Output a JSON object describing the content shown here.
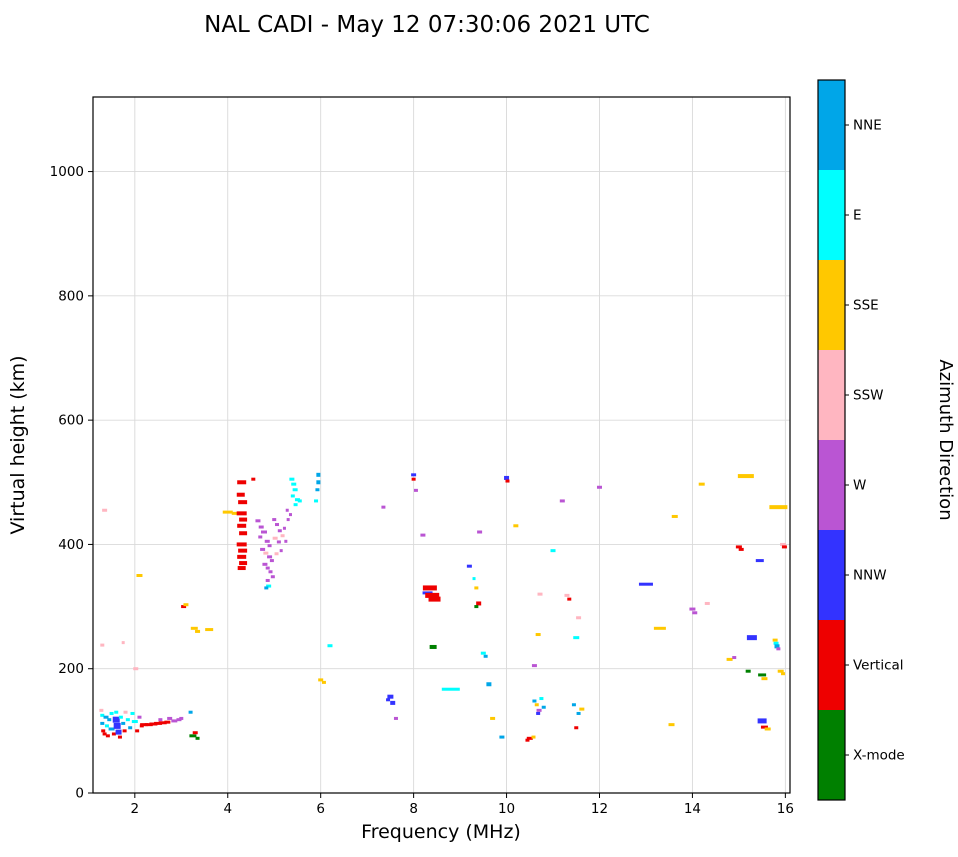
{
  "figure": {
    "title": "NAL CADI - May 12 07:30:06 2021 UTC"
  },
  "chart_data": {
    "type": "scatter",
    "title": "NAL CADI - May 12 07:30:06 2021 UTC",
    "xlabel": "Frequency (MHz)",
    "ylabel": "Virtual height (km)",
    "xlim": [
      1.1,
      16.1
    ],
    "ylim": [
      0,
      1120
    ],
    "xticks": [
      2,
      4,
      6,
      8,
      10,
      12,
      14,
      16
    ],
    "yticks": [
      0,
      200,
      400,
      600,
      800,
      1000
    ],
    "grid": true,
    "grid_color": "#d9d9d9",
    "colorbar": {
      "label": "Azimuth Direction",
      "categories_top_to_bottom": [
        "NNE",
        "E",
        "SSE",
        "SSW",
        "W",
        "NNW",
        "Vertical",
        "X-mode"
      ],
      "colors": {
        "NNE": "#00a6e8",
        "E": "#00ffff",
        "SSE": "#ffc800",
        "SSW": "#ffb6c1",
        "W": "#ba55d3",
        "NNW": "#3333ff",
        "Vertical": "#ee0000",
        "X-mode": "#008000"
      }
    },
    "point_format": "[freq_MHz, height_km, direction, dash_width_px(optional), dash_height_px(optional)]",
    "points": [
      [
        1.28,
        133,
        "SSW"
      ],
      [
        1.3,
        125,
        "E"
      ],
      [
        1.3,
        112,
        "NNE"
      ],
      [
        1.32,
        100,
        "Vertical"
      ],
      [
        1.35,
        95,
        "Vertical"
      ],
      [
        1.38,
        122,
        "NNE",
        5
      ],
      [
        1.4,
        108,
        "E"
      ],
      [
        1.42,
        92,
        "Vertical"
      ],
      [
        1.45,
        118,
        "NNE"
      ],
      [
        1.5,
        128,
        "E"
      ],
      [
        1.5,
        103,
        "NNE",
        6
      ],
      [
        1.55,
        95,
        "Vertical"
      ],
      [
        1.6,
        130,
        "E"
      ],
      [
        1.6,
        118,
        "NNW",
        7,
        6
      ],
      [
        1.62,
        108,
        "NNW",
        7,
        6
      ],
      [
        1.65,
        98,
        "NNW",
        6,
        5
      ],
      [
        1.68,
        90,
        "Vertical"
      ],
      [
        1.7,
        122,
        "E"
      ],
      [
        1.75,
        112,
        "NNE"
      ],
      [
        1.78,
        100,
        "Vertical"
      ],
      [
        1.8,
        130,
        "SSW"
      ],
      [
        1.85,
        118,
        "E"
      ],
      [
        1.9,
        105,
        "NNE"
      ],
      [
        1.95,
        128,
        "E"
      ],
      [
        2.0,
        115,
        "E",
        6
      ],
      [
        2.02,
        200,
        "SSW",
        5
      ],
      [
        2.05,
        100,
        "Vertical"
      ],
      [
        2.1,
        350,
        "SSE",
        6
      ],
      [
        2.1,
        122,
        "W"
      ],
      [
        2.15,
        108,
        "Vertical"
      ],
      [
        2.2,
        110,
        "Vertical",
        8
      ],
      [
        2.3,
        110,
        "Vertical",
        8
      ],
      [
        2.4,
        111,
        "Vertical",
        8
      ],
      [
        2.5,
        112,
        "Vertical",
        8
      ],
      [
        2.55,
        118,
        "W"
      ],
      [
        2.6,
        113,
        "Vertical",
        8
      ],
      [
        2.7,
        114,
        "Vertical",
        6
      ],
      [
        2.75,
        120,
        "W",
        5
      ],
      [
        2.85,
        116,
        "W",
        6
      ],
      [
        2.95,
        118,
        "W",
        5
      ],
      [
        3.0,
        120,
        "W",
        4
      ],
      [
        1.3,
        238,
        "SSW",
        4
      ],
      [
        1.35,
        455,
        "SSW",
        5
      ],
      [
        1.75,
        242,
        "SSW",
        3
      ],
      [
        3.05,
        300,
        "Vertical",
        5
      ],
      [
        3.1,
        303,
        "SSE",
        5
      ],
      [
        3.28,
        265,
        "SSE",
        7
      ],
      [
        3.35,
        260,
        "SSE",
        5
      ],
      [
        3.25,
        92,
        "X-mode",
        7
      ],
      [
        3.3,
        97,
        "Vertical",
        5
      ],
      [
        3.35,
        88,
        "X-mode",
        4
      ],
      [
        3.2,
        130,
        "NNE",
        4
      ],
      [
        3.6,
        263,
        "SSE",
        8
      ],
      [
        4.0,
        452,
        "SSE",
        10
      ],
      [
        4.15,
        450,
        "SSE",
        6
      ],
      [
        4.3,
        500,
        "Vertical",
        9,
        4
      ],
      [
        4.28,
        480,
        "Vertical",
        8,
        4
      ],
      [
        4.32,
        468,
        "Vertical",
        9,
        4
      ],
      [
        4.3,
        450,
        "Vertical",
        10,
        4
      ],
      [
        4.33,
        440,
        "Vertical",
        8,
        4
      ],
      [
        4.3,
        430,
        "Vertical",
        9,
        4
      ],
      [
        4.33,
        418,
        "Vertical",
        8,
        4
      ],
      [
        4.3,
        400,
        "Vertical",
        10,
        4
      ],
      [
        4.32,
        390,
        "Vertical",
        9,
        4
      ],
      [
        4.3,
        380,
        "Vertical",
        9,
        4
      ],
      [
        4.33,
        370,
        "Vertical",
        8,
        4
      ],
      [
        4.3,
        362,
        "Vertical",
        8,
        4
      ],
      [
        4.55,
        505,
        "Vertical",
        4
      ],
      [
        4.65,
        438,
        "W",
        5
      ],
      [
        4.72,
        428,
        "W",
        5
      ],
      [
        4.78,
        420,
        "W",
        6
      ],
      [
        4.7,
        412,
        "W",
        4
      ],
      [
        4.85,
        405,
        "W",
        5
      ],
      [
        4.9,
        398,
        "W",
        4
      ],
      [
        4.75,
        392,
        "W",
        5
      ],
      [
        4.82,
        386,
        "SSW",
        5
      ],
      [
        4.9,
        380,
        "W",
        5
      ],
      [
        4.95,
        374,
        "W",
        4
      ],
      [
        4.8,
        368,
        "W",
        5
      ],
      [
        4.86,
        362,
        "W",
        4
      ],
      [
        4.92,
        356,
        "W",
        4
      ],
      [
        4.97,
        348,
        "W",
        4
      ],
      [
        4.86,
        342,
        "W",
        4
      ],
      [
        4.88,
        333,
        "E",
        5
      ],
      [
        4.83,
        330,
        "NNE",
        4
      ],
      [
        5.0,
        440,
        "W",
        4
      ],
      [
        5.06,
        432,
        "W",
        4
      ],
      [
        5.12,
        422,
        "W",
        4
      ],
      [
        5.18,
        414,
        "SSW",
        4
      ],
      [
        5.22,
        426,
        "W",
        3
      ],
      [
        5.02,
        410,
        "SSW",
        5
      ],
      [
        5.1,
        404,
        "W",
        4
      ],
      [
        5.3,
        440,
        "W",
        3
      ],
      [
        5.35,
        448,
        "W",
        3
      ],
      [
        5.25,
        405,
        "W",
        3
      ],
      [
        5.15,
        390,
        "W",
        3
      ],
      [
        5.05,
        385,
        "SSW",
        4
      ],
      [
        5.28,
        455,
        "W",
        3
      ],
      [
        5.38,
        505,
        "E",
        5
      ],
      [
        5.42,
        497,
        "E",
        5
      ],
      [
        5.45,
        488,
        "E",
        5
      ],
      [
        5.4,
        478,
        "E",
        4
      ],
      [
        5.5,
        472,
        "E",
        5
      ],
      [
        5.46,
        464,
        "E",
        4
      ],
      [
        5.55,
        470,
        "E",
        4
      ],
      [
        5.95,
        512,
        "NNE",
        4,
        4
      ],
      [
        5.95,
        500,
        "NNE",
        4,
        4
      ],
      [
        5.93,
        488,
        "NNE",
        4
      ],
      [
        5.9,
        470,
        "E",
        4
      ],
      [
        6.0,
        182,
        "SSE",
        5
      ],
      [
        6.07,
        178,
        "SSE",
        4
      ],
      [
        6.2,
        237,
        "E",
        5
      ],
      [
        7.35,
        460,
        "W",
        4
      ],
      [
        7.5,
        155,
        "NNW",
        6,
        4
      ],
      [
        7.55,
        145,
        "NNW",
        5,
        4
      ],
      [
        7.62,
        120,
        "W",
        4
      ],
      [
        7.45,
        150,
        "NNW",
        4
      ],
      [
        8.0,
        512,
        "NNW",
        5
      ],
      [
        8.0,
        505,
        "Vertical",
        4
      ],
      [
        8.05,
        487,
        "W",
        4
      ],
      [
        8.2,
        415,
        "W",
        5
      ],
      [
        8.35,
        330,
        "Vertical",
        14,
        5
      ],
      [
        8.3,
        322,
        "NNW",
        10,
        3
      ],
      [
        8.4,
        318,
        "Vertical",
        14,
        5
      ],
      [
        8.45,
        312,
        "Vertical",
        12,
        5
      ],
      [
        8.42,
        235,
        "X-mode",
        7,
        4
      ],
      [
        8.8,
        167,
        "E",
        18,
        3
      ],
      [
        9.2,
        365,
        "NNW",
        5
      ],
      [
        9.3,
        345,
        "E",
        3
      ],
      [
        9.35,
        330,
        "SSE",
        4
      ],
      [
        9.4,
        305,
        "Vertical",
        5,
        4
      ],
      [
        9.35,
        300,
        "X-mode",
        4
      ],
      [
        9.42,
        420,
        "W",
        5
      ],
      [
        9.5,
        225,
        "E",
        5
      ],
      [
        9.55,
        220,
        "NNE",
        4
      ],
      [
        9.62,
        175,
        "NNE",
        5,
        4
      ],
      [
        9.7,
        120,
        "SSE",
        5
      ],
      [
        9.9,
        90,
        "NNE",
        5
      ],
      [
        10.0,
        507,
        "NNW",
        5,
        4
      ],
      [
        10.02,
        502,
        "Vertical",
        4
      ],
      [
        10.2,
        430,
        "SSE",
        5
      ],
      [
        10.5,
        88,
        "Vertical",
        6
      ],
      [
        10.58,
        90,
        "SSE",
        4
      ],
      [
        10.45,
        85,
        "Vertical",
        4
      ],
      [
        10.6,
        205,
        "W",
        5
      ],
      [
        10.68,
        255,
        "SSE",
        5
      ],
      [
        10.72,
        320,
        "SSW",
        5
      ],
      [
        10.6,
        148,
        "NNE",
        4
      ],
      [
        10.65,
        142,
        "SSE",
        4
      ],
      [
        10.7,
        133,
        "W",
        5
      ],
      [
        10.75,
        152,
        "E",
        4
      ],
      [
        10.8,
        138,
        "NNE",
        4
      ],
      [
        10.68,
        128,
        "NNW",
        4
      ],
      [
        11.0,
        390,
        "E",
        5
      ],
      [
        11.2,
        470,
        "W",
        5
      ],
      [
        11.3,
        318,
        "SSW",
        5
      ],
      [
        11.35,
        312,
        "Vertical",
        4
      ],
      [
        11.5,
        250,
        "E",
        6
      ],
      [
        11.55,
        282,
        "SSW",
        5
      ],
      [
        11.62,
        135,
        "SSE",
        5
      ],
      [
        11.55,
        128,
        "NNE",
        4
      ],
      [
        11.5,
        105,
        "Vertical",
        4
      ],
      [
        11.45,
        142,
        "NNE",
        4
      ],
      [
        12.0,
        492,
        "W",
        5
      ],
      [
        13.0,
        336,
        "NNW",
        14,
        3
      ],
      [
        13.3,
        265,
        "SSE",
        12,
        3
      ],
      [
        13.55,
        110,
        "SSE",
        6
      ],
      [
        13.62,
        445,
        "SSE",
        6
      ],
      [
        14.0,
        296,
        "W",
        6
      ],
      [
        14.05,
        290,
        "W",
        5
      ],
      [
        14.2,
        497,
        "SSE",
        6
      ],
      [
        14.32,
        305,
        "SSW",
        5
      ],
      [
        14.8,
        215,
        "SSE",
        6
      ],
      [
        14.9,
        218,
        "W",
        4
      ],
      [
        15.0,
        396,
        "Vertical",
        6
      ],
      [
        15.05,
        392,
        "Vertical",
        5
      ],
      [
        15.15,
        510,
        "SSE",
        16,
        4
      ],
      [
        15.2,
        196,
        "X-mode",
        5
      ],
      [
        15.28,
        250,
        "NNW",
        10,
        5
      ],
      [
        15.45,
        374,
        "NNW",
        8,
        3
      ],
      [
        15.5,
        190,
        "X-mode",
        8,
        3
      ],
      [
        15.55,
        184,
        "SSE",
        6
      ],
      [
        15.5,
        116,
        "NNW",
        9,
        5
      ],
      [
        15.55,
        106,
        "Vertical",
        7,
        3
      ],
      [
        15.62,
        103,
        "SSE",
        6
      ],
      [
        15.78,
        246,
        "SSE",
        5
      ],
      [
        15.8,
        241,
        "E",
        5
      ],
      [
        15.82,
        236,
        "NNE",
        5,
        4
      ],
      [
        15.85,
        232,
        "W",
        4
      ],
      [
        15.9,
        196,
        "SSE",
        6
      ],
      [
        15.95,
        192,
        "SSE",
        4
      ],
      [
        15.95,
        400,
        "SSW",
        6
      ],
      [
        15.98,
        396,
        "Vertical",
        5
      ],
      [
        15.85,
        460,
        "SSE",
        18,
        4
      ]
    ]
  }
}
